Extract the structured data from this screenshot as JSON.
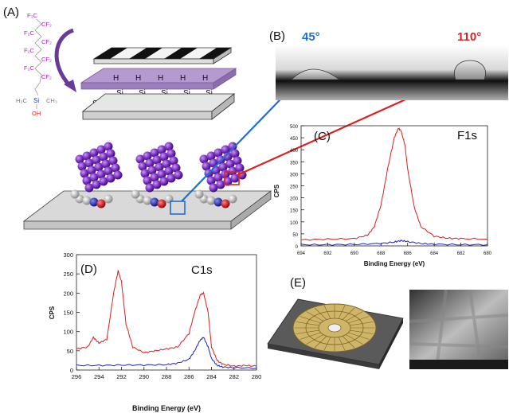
{
  "panels": {
    "A": {
      "label": "(A)",
      "molecule_atoms": {
        "f3c": "F₃C",
        "cf2_1": "CF₂",
        "f2c_1": "F₂C",
        "cf2_2": "CF₂",
        "f2c_2": "F₂C",
        "cf2_3": "CF₂",
        "f2c_3": "F₂C",
        "cf2_4": "CF₂",
        "h3c": "H₃C",
        "si": "Si",
        "ch3": "CH₃",
        "oh": "OH"
      },
      "substrate_labels": {
        "h": "H",
        "si": "Si"
      }
    },
    "B": {
      "label": "(B)",
      "angle_left": "45°",
      "angle_right": "110°",
      "angle_left_color": "#1f6fd1",
      "angle_right_color": "#e02020"
    },
    "C": {
      "label": "(C)",
      "title": "F1s",
      "ylabel": "CPS",
      "xlabel": "Binding Energy (eV)",
      "yticks": [
        "0",
        "50",
        "100",
        "150",
        "200",
        "250",
        "300",
        "350",
        "400",
        "450",
        "500"
      ],
      "xticks": [
        "694",
        "692",
        "690",
        "688",
        "686",
        "684",
        "682",
        "680"
      ]
    },
    "D": {
      "label": "(D)",
      "title": "C1s",
      "ylabel": "CPS",
      "xlabel": "Binding Energy (eV)",
      "yticks": [
        "0",
        "50",
        "100",
        "150",
        "200",
        "250",
        "300"
      ],
      "xticks": [
        "296",
        "294",
        "292",
        "290",
        "288",
        "286",
        "284",
        "282",
        "280"
      ]
    },
    "E": {
      "label": "(E)"
    }
  },
  "chart_data": [
    {
      "type": "line",
      "title": "F1s",
      "xlabel": "Binding Energy (eV)",
      "ylabel": "CPS",
      "xlim": [
        694,
        680
      ],
      "ylim": [
        0,
        500
      ],
      "series": [
        {
          "color": "#e01b1b",
          "x": [
            694,
            692,
            690,
            689,
            688.5,
            688,
            687.5,
            687,
            686.7,
            686.5,
            686.2,
            686,
            685.5,
            685,
            684,
            683,
            682,
            680
          ],
          "y": [
            25,
            28,
            30,
            45,
            80,
            170,
            320,
            450,
            490,
            480,
            420,
            320,
            160,
            80,
            40,
            32,
            30,
            28
          ]
        },
        {
          "color": "#2020c8",
          "x": [
            694,
            692,
            690,
            688,
            687,
            686.5,
            686,
            685,
            684,
            682,
            680
          ],
          "y": [
            5,
            5,
            6,
            10,
            16,
            22,
            18,
            10,
            7,
            5,
            5
          ]
        }
      ]
    },
    {
      "type": "line",
      "title": "C1s",
      "xlabel": "Binding Energy (eV)",
      "ylabel": "CPS",
      "xlim": [
        296,
        280
      ],
      "ylim": [
        0,
        300
      ],
      "series": [
        {
          "color": "#e01b1b",
          "x": [
            296,
            295,
            294.5,
            294,
            293.3,
            292.7,
            292.3,
            292.0,
            291.6,
            291,
            290,
            289,
            288,
            287,
            286,
            285.5,
            285,
            284.7,
            284.3,
            284,
            283.5,
            283,
            282,
            281,
            280
          ],
          "y": [
            55,
            60,
            85,
            70,
            80,
            200,
            258,
            230,
            120,
            60,
            45,
            50,
            55,
            60,
            95,
            150,
            195,
            200,
            150,
            60,
            25,
            15,
            10,
            12,
            10
          ]
        },
        {
          "color": "#2020c8",
          "x": [
            296,
            294,
            292,
            290,
            288,
            287,
            286,
            285.5,
            285,
            284.7,
            284.3,
            284,
            283.5,
            283,
            282,
            280
          ],
          "y": [
            12,
            12,
            13,
            13,
            14,
            18,
            28,
            50,
            78,
            85,
            60,
            30,
            12,
            8,
            6,
            5
          ]
        }
      ]
    }
  ]
}
